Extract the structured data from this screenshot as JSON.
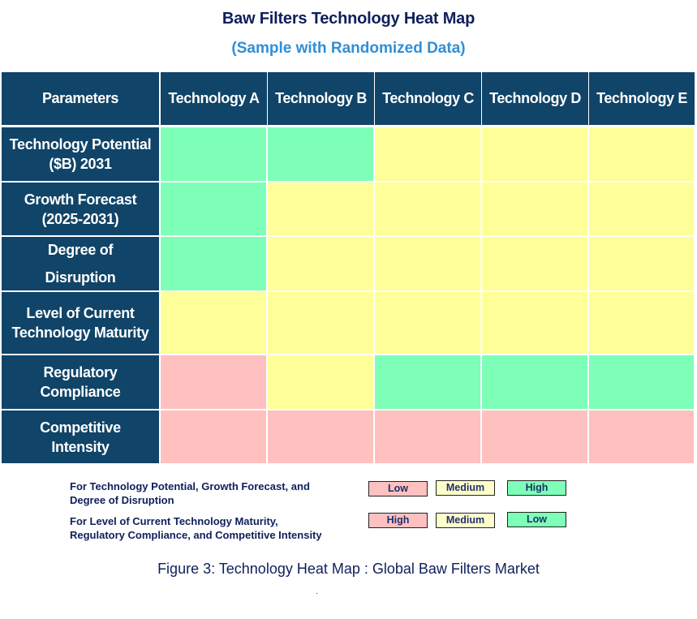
{
  "header": {
    "title": "Baw Filters Technology Heat Map",
    "subtitle": "(Sample with Randomized Data)"
  },
  "colors": {
    "header_bg": "#104468",
    "high_green": "#7dffb8",
    "medium_yellow": "#ffff99",
    "low_pink": "#ffc0c0",
    "title": "#0f1f5c",
    "subtitle": "#2f8fd6"
  },
  "chart_data": {
    "type": "heatmap",
    "title": "Baw Filters Technology Heat Map",
    "subtitle": "(Sample with Randomized Data)",
    "corner_label": "Parameters",
    "columns": [
      "Technology A",
      "Technology B",
      "Technology C",
      "Technology D",
      "Technology E"
    ],
    "rows": [
      {
        "label": "Technology Potential ($B) 2031",
        "line1": "Technology Potential",
        "line2": "($B) 2031",
        "values": [
          "green",
          "green",
          "yellow",
          "yellow",
          "yellow"
        ],
        "ratings": [
          "High",
          "High",
          "Medium",
          "Medium",
          "Medium"
        ]
      },
      {
        "label": "Growth Forecast (2025-2031)",
        "line1": "Growth Forecast",
        "line2": "(2025-2031)",
        "values": [
          "green",
          "yellow",
          "yellow",
          "yellow",
          "yellow"
        ],
        "ratings": [
          "High",
          "Medium",
          "Medium",
          "Medium",
          "Medium"
        ]
      },
      {
        "label": "Degree of Disruption",
        "line1": "Degree of",
        "line2": "Disruption",
        "values": [
          "green",
          "yellow",
          "yellow",
          "yellow",
          "yellow"
        ],
        "ratings": [
          "High",
          "Medium",
          "Medium",
          "Medium",
          "Medium"
        ]
      },
      {
        "label": "Level of Current Technology Maturity",
        "line1": "Level of Current",
        "line2": "Technology Maturity",
        "values": [
          "yellow",
          "yellow",
          "yellow",
          "yellow",
          "yellow"
        ],
        "ratings": [
          "Medium",
          "Medium",
          "Medium",
          "Medium",
          "Medium"
        ]
      },
      {
        "label": "Regulatory Compliance",
        "line1": "Regulatory",
        "line2": "Compliance",
        "values": [
          "pink",
          "yellow",
          "green",
          "green",
          "green"
        ],
        "ratings": [
          "High",
          "Medium",
          "Low",
          "Low",
          "Low"
        ]
      },
      {
        "label": "Competitive Intensity",
        "line1": "Competitive",
        "line2": "Intensity",
        "values": [
          "pink",
          "pink",
          "pink",
          "pink",
          "pink"
        ],
        "ratings": [
          "High",
          "High",
          "High",
          "High",
          "High"
        ]
      }
    ],
    "legend": [
      {
        "description": "For Technology Potential, Growth Forecast, and Degree of Disruption",
        "pink": "Low",
        "yellow": "Medium",
        "green": "High"
      },
      {
        "description": "For Level of Current Technology Maturity, Regulatory Compliance, and Competitive Intensity",
        "pink": "High",
        "yellow": "Medium",
        "green": "Low"
      }
    ],
    "caption": "Figure 3: Technology Heat Map : Global Baw Filters Market"
  },
  "legend": {
    "group1": {
      "line1": "For Technology Potential, Growth Forecast, and",
      "line2": "Degree of Disruption",
      "pink": "Low",
      "yellow": "Medium",
      "green": "High"
    },
    "group2": {
      "line1": "For Level of Current Technology Maturity,",
      "line2": "Regulatory Compliance, and Competitive Intensity",
      "pink": "High",
      "yellow": "Medium",
      "green": "Low"
    }
  },
  "caption": "Figure 3: Technology Heat Map : Global Baw Filters Market"
}
